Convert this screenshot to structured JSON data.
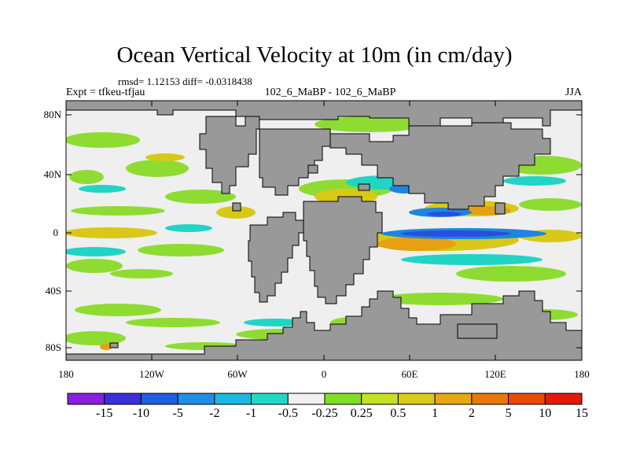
{
  "title": "Ocean Vertical Velocity at 10m (in cm/day)",
  "stats": "rmsd= 1.12153 diff= -0.0318438",
  "experiment": "Expt = tfkeu-tfjau",
  "comparison": "102_6_MaBP - 102_6_MaBP",
  "season": "JJA",
  "lat_labels": [
    "80N",
    "40N",
    "0",
    "40S",
    "80S"
  ],
  "lon_labels": [
    "180",
    "120W",
    "60W",
    "0",
    "60E",
    "120E",
    "180"
  ],
  "colorbar": {
    "labels": [
      "-15",
      "-10",
      "-5",
      "-2",
      "-1",
      "-0.5",
      "-0.25",
      "0.25",
      "0.5",
      "1",
      "2",
      "5",
      "10",
      "15"
    ],
    "colors": [
      "#8a1fe0",
      "#3a2ee0",
      "#1f5ee6",
      "#1f90e6",
      "#1bb8e0",
      "#20d8c8",
      "#f0f0f0",
      "#7ee020",
      "#c4e020",
      "#d8cc18",
      "#e8a810",
      "#e87808",
      "#e84a08",
      "#e41a08"
    ]
  },
  "land_color": "#999999"
}
